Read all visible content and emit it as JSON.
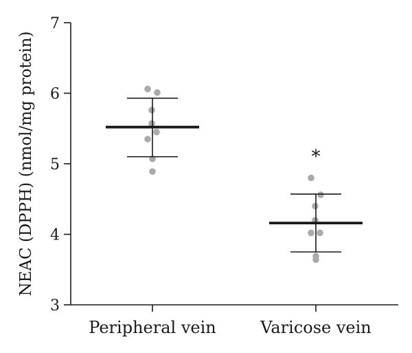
{
  "chart_data": {
    "type": "scatter",
    "ylabel": "NEAC (DPPH) (nmol/mg protein)",
    "xlabel": "",
    "ylim": [
      3,
      7
    ],
    "yticks": [
      3,
      4,
      5,
      6,
      7
    ],
    "categories": [
      "Peripheral vein",
      "Varicose vein"
    ],
    "groups": [
      {
        "category": "Peripheral vein",
        "mean": 5.52,
        "sd_upper": 5.93,
        "sd_lower": 5.1,
        "points": [
          6.06,
          6.01,
          5.76,
          5.57,
          5.45,
          5.35,
          5.07,
          4.89
        ],
        "annotation": ""
      },
      {
        "category": "Varicose vein",
        "mean": 4.16,
        "sd_upper": 4.57,
        "sd_lower": 3.75,
        "points": [
          4.8,
          4.56,
          4.4,
          4.2,
          4.02,
          4.02,
          3.69,
          3.64
        ],
        "annotation": "*"
      }
    ],
    "grid": false,
    "point_color": "#aaaaaa",
    "line_color": "#1a1a1a"
  }
}
